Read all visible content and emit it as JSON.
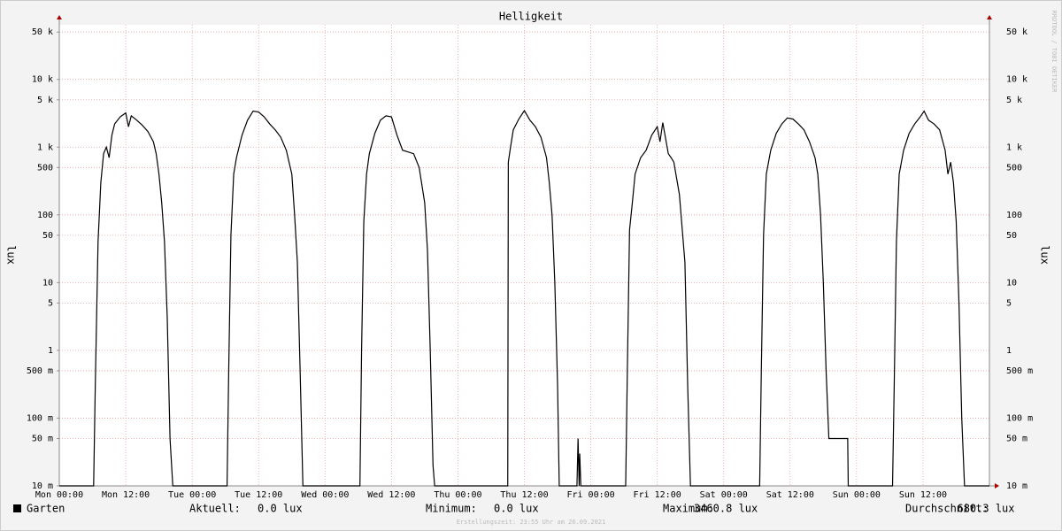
{
  "chart_data": {
    "type": "line",
    "title": "Helligkeit",
    "y_label": "lux",
    "log_y": true,
    "grid": true,
    "watermark": "RRDTOOL / TOBI OETIKER",
    "footer": "Erstellungszeit: 23:55 Uhr am 26.09.2021",
    "xlim": [
      0,
      168
    ],
    "xticks": [
      {
        "value": 0,
        "label": "Mon 00:00"
      },
      {
        "value": 12,
        "label": "Mon 12:00"
      },
      {
        "value": 24,
        "label": "Tue 00:00"
      },
      {
        "value": 36,
        "label": "Tue 12:00"
      },
      {
        "value": 48,
        "label": "Wed 00:00"
      },
      {
        "value": 60,
        "label": "Wed 12:00"
      },
      {
        "value": 72,
        "label": "Thu 00:00"
      },
      {
        "value": 84,
        "label": "Thu 12:00"
      },
      {
        "value": 96,
        "label": "Fri 00:00"
      },
      {
        "value": 108,
        "label": "Fri 12:00"
      },
      {
        "value": 120,
        "label": "Sat 00:00"
      },
      {
        "value": 132,
        "label": "Sat 12:00"
      },
      {
        "value": 144,
        "label": "Sun 00:00"
      },
      {
        "value": 156,
        "label": "Sun 12:00"
      }
    ],
    "ylim": [
      0.01,
      64000
    ],
    "yticks": [
      {
        "value": 0.01,
        "label": "10 m"
      },
      {
        "value": 0.05,
        "label": "50 m"
      },
      {
        "value": 0.1,
        "label": "100 m"
      },
      {
        "value": 0.5,
        "label": "500 m"
      },
      1,
      5,
      10,
      50,
      100,
      500,
      {
        "value": 1000,
        "label": "1 k"
      },
      {
        "value": 5000,
        "label": "5 k"
      },
      {
        "value": 10000,
        "label": "10 k"
      },
      {
        "value": 50000,
        "label": "50 k"
      }
    ],
    "x": [
      0,
      6.2,
      6.5,
      7,
      7.5,
      8,
      8.5,
      9,
      9.5,
      10,
      11,
      12,
      12.5,
      13,
      14,
      15,
      16,
      17,
      17.5,
      18,
      18.5,
      19,
      19.5,
      20,
      20.5,
      30.3,
      30.6,
      31,
      31.5,
      32,
      33,
      34,
      35,
      36,
      37,
      38,
      39,
      40,
      41,
      42,
      42.5,
      43,
      43.5,
      44,
      44.2,
      54.3,
      54.6,
      55,
      55.5,
      56,
      57,
      58,
      59,
      60,
      61,
      62,
      63,
      64,
      65,
      66,
      66.5,
      67,
      67.5,
      67.8,
      81,
      81.1,
      81.5,
      82,
      83,
      84,
      85,
      86,
      87,
      88,
      88.5,
      89,
      89.5,
      90,
      90.3,
      90.5,
      93.5,
      93.7,
      93.9,
      94,
      94.2,
      102.3,
      102.6,
      103,
      103.5,
      104,
      105,
      106,
      107,
      108,
      108.5,
      109,
      110,
      110.5,
      111,
      112,
      113,
      113.5,
      114,
      114.2,
      126.5,
      126.8,
      127.2,
      127.7,
      128.5,
      129.5,
      130.5,
      131.5,
      132.5,
      133.5,
      134.5,
      135.5,
      136.5,
      137,
      137.5,
      138,
      138.5,
      139,
      142.4,
      142.5,
      150.5,
      150.8,
      151.2,
      151.7,
      152.5,
      153.5,
      154.5,
      155.5,
      156.2,
      157,
      158,
      159,
      160,
      160.5,
      161,
      161.5,
      162,
      162.5,
      163,
      163.5,
      163.7,
      168
    ],
    "series": [
      {
        "name": "Garten",
        "color": "#000000",
        "values": [
          0,
          0,
          0.3,
          40,
          300,
          800,
          1000,
          700,
          1500,
          2200,
          2800,
          3200,
          2000,
          2900,
          2500,
          2100,
          1700,
          1200,
          800,
          400,
          150,
          40,
          3,
          0.05,
          0,
          0,
          0.5,
          50,
          400,
          700,
          1500,
          2500,
          3400,
          3300,
          2800,
          2200,
          1800,
          1400,
          900,
          400,
          100,
          20,
          0.5,
          0.01,
          0,
          0,
          1,
          80,
          400,
          800,
          1600,
          2500,
          2900,
          2800,
          1500,
          900,
          850,
          800,
          500,
          150,
          30,
          1,
          0.02,
          0,
          0,
          600,
          1000,
          1800,
          2600,
          3460.8,
          2500,
          2000,
          1400,
          700,
          300,
          100,
          10,
          0.3,
          0.01,
          0,
          0,
          0.05,
          0.01,
          0.03,
          0,
          0,
          0.5,
          60,
          150,
          400,
          700,
          900,
          1500,
          2000,
          1200,
          2300,
          800,
          700,
          600,
          200,
          20,
          0.3,
          0.01,
          0,
          0,
          0.5,
          50,
          400,
          900,
          1600,
          2200,
          2700,
          2600,
          2200,
          1800,
          1200,
          700,
          400,
          100,
          10,
          0.5,
          0.05,
          0.05,
          0,
          0,
          0.3,
          40,
          400,
          900,
          1600,
          2200,
          2800,
          3400,
          2500,
          2200,
          1800,
          900,
          400,
          600,
          300,
          80,
          5,
          0.1,
          0.01,
          0,
          0
        ]
      }
    ],
    "stats": [
      {
        "label": "Aktuell:",
        "value": "0.0 lux"
      },
      {
        "label": "Minimum:",
        "value": "0.0 lux"
      },
      {
        "label": "Maximum:",
        "value": "3460.8 lux"
      },
      {
        "label": "Durchschnitt:",
        "value": "680.3 lux"
      }
    ]
  }
}
